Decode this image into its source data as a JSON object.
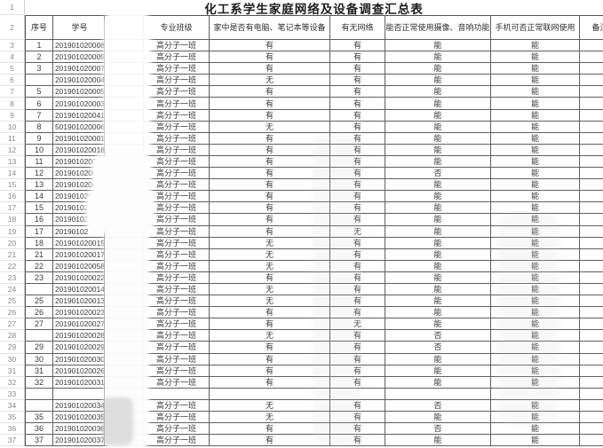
{
  "title": "化工系学生家庭网络及设备调查汇总表",
  "title_row": {
    "n": "1"
  },
  "header_row": {
    "n": "2"
  },
  "columns": {
    "serial": "序号",
    "student_id": "学号",
    "name_blurred": "",
    "class": "专业班级",
    "computer": "家中是否有电脑、笔记本等设备",
    "network": "有无网络",
    "camera": "能否正常使用摄像、音响功能",
    "phone": "手机可否正常联网使用",
    "note": "备注"
  },
  "colors": {
    "grid_border": "#5f5f5f",
    "gutter_text": "#8a8a8a",
    "text": "#3a3a3a"
  },
  "rows": [
    {
      "n": "3",
      "serial": "1",
      "sid": "201901020008",
      "cls": "高分子一班",
      "computer": "有",
      "network": "有",
      "camera": "能",
      "phone": "能",
      "note": ""
    },
    {
      "n": "4",
      "serial": "2",
      "sid": "201901020009",
      "cls": "高分子一班",
      "computer": "有",
      "network": "有",
      "camera": "能",
      "phone": "能",
      "note": ""
    },
    {
      "n": "5",
      "serial": "3",
      "sid": "201901020007",
      "cls": "高分子一班",
      "computer": "有",
      "network": "有",
      "camera": "能",
      "phone": "能",
      "note": ""
    },
    {
      "n": "6",
      "serial": "",
      "sid": "201901020004",
      "cls": "高分子一班",
      "computer": "无",
      "network": "有",
      "camera": "能",
      "phone": "能",
      "note": ""
    },
    {
      "n": "7",
      "serial": "5",
      "sid": "201901020005",
      "cls": "高分子一班",
      "computer": "有",
      "network": "有",
      "camera": "能",
      "phone": "能",
      "note": ""
    },
    {
      "n": "8",
      "serial": "6",
      "sid": "201901020003",
      "cls": "高分子一班",
      "computer": "有",
      "network": "有",
      "camera": "能",
      "phone": "能",
      "note": ""
    },
    {
      "n": "9",
      "serial": "7",
      "sid": "201901020041",
      "cls": "高分子一班",
      "computer": "有",
      "network": "有",
      "camera": "能",
      "phone": "能",
      "note": ""
    },
    {
      "n": "10",
      "serial": "8",
      "sid": "501901020006",
      "cls": "高分子一班",
      "computer": "无",
      "network": "有",
      "camera": "能",
      "phone": "能",
      "note": ""
    },
    {
      "n": "11",
      "serial": "9",
      "sid": "201901020001",
      "cls": "高分子一班",
      "computer": "有",
      "network": "有",
      "camera": "能",
      "phone": "能",
      "note": ""
    },
    {
      "n": "12",
      "serial": "10",
      "sid": "201901020018",
      "cls": "高分子一班",
      "computer": "有",
      "network": "有",
      "camera": "能",
      "phone": "能",
      "note": ""
    },
    {
      "n": "13",
      "serial": "11",
      "sid": "20190102001",
      "cls": "高分子一班",
      "computer": "有",
      "network": "有",
      "camera": "能",
      "phone": "能",
      "note": ""
    },
    {
      "n": "14",
      "serial": "12",
      "sid": "2019010200",
      "cls": "高分子一班",
      "computer": "有",
      "network": "有",
      "camera": "否",
      "phone": "能",
      "note": ""
    },
    {
      "n": "15",
      "serial": "13",
      "sid": "2019010200",
      "cls": "高分子一班",
      "computer": "有",
      "network": "有",
      "camera": "能",
      "phone": "能",
      "note": ""
    },
    {
      "n": "16",
      "serial": "14",
      "sid": "201901020",
      "cls": "高分子一班",
      "computer": "有",
      "network": "有",
      "camera": "能",
      "phone": "能",
      "note": ""
    },
    {
      "n": "17",
      "serial": "15",
      "sid": "20190102",
      "cls": "高分子一班",
      "computer": "有",
      "network": "有",
      "camera": "能",
      "phone": "能",
      "note": ""
    },
    {
      "n": "18",
      "serial": "16",
      "sid": "20190102",
      "cls": "高分子一班",
      "computer": "有",
      "network": "有",
      "camera": "能",
      "phone": "能",
      "note": ""
    },
    {
      "n": "19",
      "serial": "17",
      "sid": "20190102",
      "cls": "高分子一班",
      "computer": "有",
      "network": "无",
      "camera": "能",
      "phone": "能",
      "note": ""
    },
    {
      "n": "20",
      "serial": "18",
      "sid": "201901020015",
      "cls": "高分子一班",
      "computer": "无",
      "network": "有",
      "camera": "能",
      "phone": "能",
      "note": ""
    },
    {
      "n": "21",
      "serial": "21",
      "sid": "201901020017",
      "cls": "高分子一班",
      "computer": "无",
      "network": "有",
      "camera": "能",
      "phone": "能",
      "note": ""
    },
    {
      "n": "22",
      "serial": "22",
      "sid": "201901020058",
      "cls": "高分子一班",
      "computer": "无",
      "network": "有",
      "camera": "能",
      "phone": "能",
      "note": ""
    },
    {
      "n": "23",
      "serial": "23",
      "sid": "201901020022",
      "cls": "高分子一班",
      "computer": "有",
      "network": "有",
      "camera": "能",
      "phone": "能",
      "note": ""
    },
    {
      "n": "24",
      "serial": "",
      "sid": "201901020014",
      "cls": "高分子一班",
      "computer": "无",
      "network": "有",
      "camera": "能",
      "phone": "能",
      "note": ""
    },
    {
      "n": "25",
      "serial": "25",
      "sid": "201901020013",
      "cls": "高分子一班",
      "computer": "无",
      "network": "有",
      "camera": "能",
      "phone": "能",
      "note": ""
    },
    {
      "n": "26",
      "serial": "26",
      "sid": "201901020023",
      "cls": "高分子一班",
      "computer": "有",
      "network": "有",
      "camera": "能",
      "phone": "能",
      "note": ""
    },
    {
      "n": "27",
      "serial": "27",
      "sid": "201901020027",
      "cls": "高分子一班",
      "computer": "有",
      "network": "无",
      "camera": "能",
      "phone": "能",
      "note": ""
    },
    {
      "n": "28",
      "serial": "",
      "sid": "201901020028",
      "cls": "高分子一班",
      "computer": "无",
      "network": "有",
      "camera": "否",
      "phone": "能",
      "note": ""
    },
    {
      "n": "29",
      "serial": "29",
      "sid": "201901020029",
      "cls": "高分子一班",
      "computer": "有",
      "network": "有",
      "camera": "否",
      "phone": "能",
      "note": ""
    },
    {
      "n": "30",
      "serial": "30",
      "sid": "201901020030",
      "cls": "高分子一班",
      "computer": "有",
      "network": "有",
      "camera": "能",
      "phone": "能",
      "note": ""
    },
    {
      "n": "31",
      "serial": "31",
      "sid": "201901020026",
      "cls": "高分子一班",
      "computer": "有",
      "network": "有",
      "camera": "能",
      "phone": "能",
      "note": ""
    },
    {
      "n": "32",
      "serial": "32",
      "sid": "201901020031",
      "cls": "高分子一班",
      "computer": "有",
      "network": "有",
      "camera": "能",
      "phone": "能",
      "note": ""
    },
    {
      "n": "33",
      "serial": "",
      "sid": "",
      "cls": "",
      "computer": "",
      "network": "",
      "camera": "",
      "phone": "",
      "note": ""
    },
    {
      "n": "34",
      "serial": "",
      "sid": "201901020034",
      "cls": "高分子一班",
      "computer": "无",
      "network": "有",
      "camera": "否",
      "phone": "能",
      "note": ""
    },
    {
      "n": "35",
      "serial": "35",
      "sid": "201901020035",
      "cls": "高分子一班",
      "computer": "无",
      "network": "有",
      "camera": "能",
      "phone": "能",
      "note": ""
    },
    {
      "n": "36",
      "serial": "36",
      "sid": "201901020036",
      "cls": "高分子一班",
      "computer": "有",
      "network": "有",
      "camera": "否",
      "phone": "能",
      "note": ""
    },
    {
      "n": "37",
      "serial": "37",
      "sid": "201901020037",
      "cls": "高分子一班",
      "computer": "有",
      "network": "有",
      "camera": "能",
      "phone": "能",
      "note": ""
    }
  ]
}
